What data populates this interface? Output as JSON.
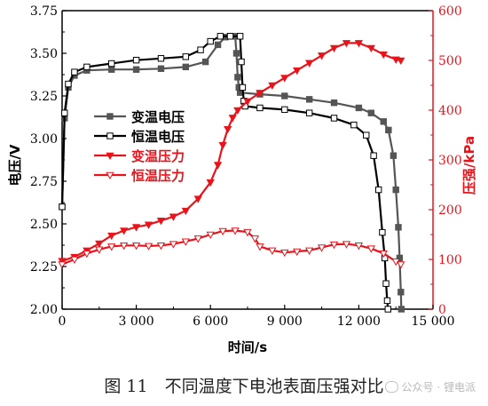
{
  "caption": "图 11　不同温度下电池表面压强对比",
  "watermark": "公众号 · 锂电派",
  "chart_data": {
    "type": "line",
    "title": "",
    "xlabel": "时间/s",
    "ylabel_left": "电压/V",
    "ylabel_right": "压强/kPa",
    "xlim": [
      0,
      15000
    ],
    "ylim_left": [
      2.0,
      3.75
    ],
    "ylim_right": [
      0,
      600
    ],
    "x_ticks": [
      "0",
      "3 000",
      "6 000",
      "9 000",
      "12 000",
      "15 000"
    ],
    "y_left_ticks": [
      "2.00",
      "2.25",
      "2.50",
      "2.75",
      "3.00",
      "3.25",
      "3.50",
      "3.75"
    ],
    "y_right_ticks": [
      "0",
      "100",
      "200",
      "300",
      "400",
      "500",
      "600"
    ],
    "grid": false,
    "legend_position": "center-left",
    "series": [
      {
        "name": "变温电压",
        "axis": "left",
        "color": "#555555",
        "marker": "filled-square",
        "x": [
          0,
          100,
          250,
          500,
          1000,
          2000,
          3000,
          4000,
          5000,
          5800,
          6300,
          6600,
          6800,
          7000,
          7050,
          7100,
          7150,
          7200,
          8000,
          9000,
          10000,
          11000,
          12000,
          12500,
          13000,
          13200,
          13400,
          13500,
          13600,
          13650,
          13700,
          13720
        ],
        "y": [
          2.6,
          3.12,
          3.3,
          3.37,
          3.4,
          3.405,
          3.405,
          3.41,
          3.42,
          3.45,
          3.55,
          3.595,
          3.6,
          3.6,
          3.5,
          3.36,
          3.3,
          3.27,
          3.26,
          3.25,
          3.23,
          3.21,
          3.18,
          3.15,
          3.1,
          3.05,
          2.9,
          2.7,
          2.48,
          2.3,
          2.1,
          2.0
        ]
      },
      {
        "name": "恒温电压",
        "axis": "left",
        "color": "#000000",
        "marker": "open-square",
        "x": [
          0,
          100,
          250,
          500,
          1000,
          2000,
          3000,
          4000,
          5000,
          5600,
          6000,
          6400,
          6800,
          7200,
          7250,
          7300,
          7350,
          7400,
          8000,
          9000,
          10000,
          11000,
          11800,
          12300,
          12600,
          12800,
          12950,
          13050,
          13100,
          13150,
          13180
        ],
        "y": [
          2.6,
          3.15,
          3.32,
          3.39,
          3.42,
          3.44,
          3.46,
          3.47,
          3.48,
          3.52,
          3.57,
          3.6,
          3.6,
          3.6,
          3.45,
          3.3,
          3.22,
          3.19,
          3.18,
          3.17,
          3.15,
          3.12,
          3.08,
          3.02,
          2.9,
          2.7,
          2.45,
          2.3,
          2.15,
          2.05,
          2.0
        ]
      },
      {
        "name": "变温压力",
        "axis": "right",
        "color": "#e8141b",
        "marker": "filled-down-triangle",
        "x": [
          0,
          500,
          1000,
          1500,
          2000,
          2500,
          3000,
          3500,
          4000,
          4500,
          5000,
          5500,
          6000,
          6300,
          6500,
          6700,
          6900,
          7100,
          7500,
          8000,
          8500,
          9000,
          9500,
          10000,
          10500,
          11000,
          11500,
          12000,
          12500,
          13000,
          13500,
          13700
        ],
        "y": [
          97,
          105,
          118,
          132,
          148,
          158,
          165,
          170,
          178,
          186,
          198,
          222,
          255,
          290,
          330,
          362,
          385,
          400,
          418,
          435,
          450,
          465,
          480,
          495,
          510,
          525,
          535,
          535,
          525,
          512,
          502,
          500
        ]
      },
      {
        "name": "恒温压力",
        "axis": "right",
        "color": "#e8141b",
        "marker": "open-down-triangle",
        "x": [
          0,
          500,
          1000,
          1500,
          2000,
          2500,
          3000,
          3500,
          4000,
          4500,
          5000,
          5500,
          6000,
          6500,
          7000,
          7500,
          7800,
          8000,
          8500,
          9000,
          9500,
          10000,
          10500,
          11000,
          11500,
          12000,
          12500,
          13000,
          13500,
          13700
        ],
        "y": [
          90,
          100,
          112,
          120,
          126,
          128,
          128,
          127,
          128,
          131,
          136,
          142,
          150,
          157,
          158,
          155,
          142,
          126,
          118,
          114,
          116,
          118,
          124,
          130,
          131,
          128,
          122,
          112,
          96,
          90
        ]
      }
    ]
  }
}
